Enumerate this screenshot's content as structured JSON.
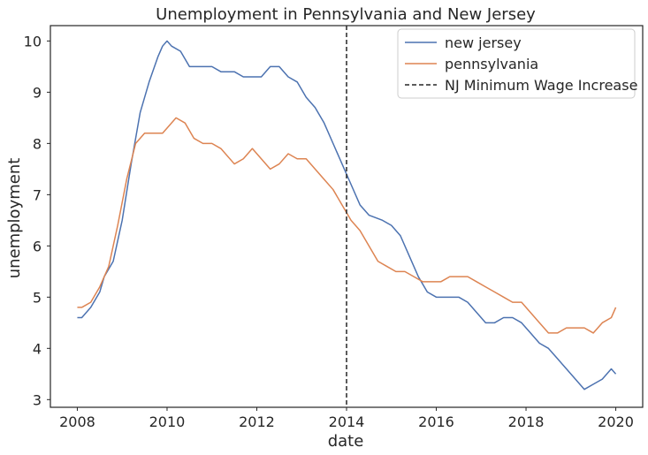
{
  "chart_data": {
    "type": "line",
    "title": "Unemployment in Pennsylvania and New Jersey",
    "xlabel": "date",
    "ylabel": "unemployment",
    "xlim": [
      2007.4,
      2020.6
    ],
    "ylim": [
      2.85,
      10.3
    ],
    "xticks": [
      2008,
      2010,
      2012,
      2014,
      2016,
      2018,
      2020
    ],
    "yticks": [
      3,
      4,
      5,
      6,
      7,
      8,
      9,
      10
    ],
    "grid": false,
    "legend_position": "top-right",
    "series": [
      {
        "name": "new jersey",
        "color": "#4c72b0",
        "points": [
          [
            2008.0,
            4.6
          ],
          [
            2008.1,
            4.6
          ],
          [
            2008.3,
            4.8
          ],
          [
            2008.5,
            5.1
          ],
          [
            2008.6,
            5.4
          ],
          [
            2008.8,
            5.7
          ],
          [
            2009.0,
            6.5
          ],
          [
            2009.2,
            7.6
          ],
          [
            2009.4,
            8.6
          ],
          [
            2009.6,
            9.2
          ],
          [
            2009.8,
            9.7
          ],
          [
            2009.9,
            9.9
          ],
          [
            2010.0,
            10.0
          ],
          [
            2010.1,
            9.9
          ],
          [
            2010.3,
            9.8
          ],
          [
            2010.5,
            9.5
          ],
          [
            2010.7,
            9.5
          ],
          [
            2011.0,
            9.5
          ],
          [
            2011.2,
            9.4
          ],
          [
            2011.5,
            9.4
          ],
          [
            2011.7,
            9.3
          ],
          [
            2011.9,
            9.3
          ],
          [
            2012.1,
            9.3
          ],
          [
            2012.3,
            9.5
          ],
          [
            2012.5,
            9.5
          ],
          [
            2012.7,
            9.3
          ],
          [
            2012.9,
            9.2
          ],
          [
            2013.1,
            8.9
          ],
          [
            2013.3,
            8.7
          ],
          [
            2013.5,
            8.4
          ],
          [
            2013.7,
            8.0
          ],
          [
            2013.9,
            7.6
          ],
          [
            2014.1,
            7.2
          ],
          [
            2014.3,
            6.8
          ],
          [
            2014.5,
            6.6
          ],
          [
            2014.8,
            6.5
          ],
          [
            2015.0,
            6.4
          ],
          [
            2015.2,
            6.2
          ],
          [
            2015.4,
            5.8
          ],
          [
            2015.6,
            5.4
          ],
          [
            2015.8,
            5.1
          ],
          [
            2016.0,
            5.0
          ],
          [
            2016.2,
            5.0
          ],
          [
            2016.5,
            5.0
          ],
          [
            2016.7,
            4.9
          ],
          [
            2016.9,
            4.7
          ],
          [
            2017.1,
            4.5
          ],
          [
            2017.3,
            4.5
          ],
          [
            2017.5,
            4.6
          ],
          [
            2017.7,
            4.6
          ],
          [
            2017.9,
            4.5
          ],
          [
            2018.1,
            4.3
          ],
          [
            2018.3,
            4.1
          ],
          [
            2018.5,
            4.0
          ],
          [
            2018.7,
            3.8
          ],
          [
            2018.9,
            3.6
          ],
          [
            2019.1,
            3.4
          ],
          [
            2019.3,
            3.2
          ],
          [
            2019.5,
            3.3
          ],
          [
            2019.7,
            3.4
          ],
          [
            2019.9,
            3.6
          ],
          [
            2020.0,
            3.5
          ]
        ]
      },
      {
        "name": "pennsylvania",
        "color": "#dd8452",
        "points": [
          [
            2008.0,
            4.8
          ],
          [
            2008.1,
            4.8
          ],
          [
            2008.3,
            4.9
          ],
          [
            2008.5,
            5.2
          ],
          [
            2008.7,
            5.6
          ],
          [
            2008.9,
            6.4
          ],
          [
            2009.1,
            7.3
          ],
          [
            2009.3,
            8.0
          ],
          [
            2009.5,
            8.2
          ],
          [
            2009.7,
            8.2
          ],
          [
            2009.9,
            8.2
          ],
          [
            2010.0,
            8.3
          ],
          [
            2010.2,
            8.5
          ],
          [
            2010.4,
            8.4
          ],
          [
            2010.6,
            8.1
          ],
          [
            2010.8,
            8.0
          ],
          [
            2011.0,
            8.0
          ],
          [
            2011.2,
            7.9
          ],
          [
            2011.5,
            7.6
          ],
          [
            2011.7,
            7.7
          ],
          [
            2011.9,
            7.9
          ],
          [
            2012.1,
            7.7
          ],
          [
            2012.3,
            7.5
          ],
          [
            2012.5,
            7.6
          ],
          [
            2012.7,
            7.8
          ],
          [
            2012.9,
            7.7
          ],
          [
            2013.1,
            7.7
          ],
          [
            2013.3,
            7.5
          ],
          [
            2013.5,
            7.3
          ],
          [
            2013.7,
            7.1
          ],
          [
            2013.9,
            6.8
          ],
          [
            2014.1,
            6.5
          ],
          [
            2014.3,
            6.3
          ],
          [
            2014.5,
            6.0
          ],
          [
            2014.7,
            5.7
          ],
          [
            2014.9,
            5.6
          ],
          [
            2015.1,
            5.5
          ],
          [
            2015.3,
            5.5
          ],
          [
            2015.5,
            5.4
          ],
          [
            2015.7,
            5.3
          ],
          [
            2015.9,
            5.3
          ],
          [
            2016.1,
            5.3
          ],
          [
            2016.3,
            5.4
          ],
          [
            2016.5,
            5.4
          ],
          [
            2016.7,
            5.4
          ],
          [
            2016.9,
            5.3
          ],
          [
            2017.1,
            5.2
          ],
          [
            2017.3,
            5.1
          ],
          [
            2017.5,
            5.0
          ],
          [
            2017.7,
            4.9
          ],
          [
            2017.9,
            4.9
          ],
          [
            2018.1,
            4.7
          ],
          [
            2018.3,
            4.5
          ],
          [
            2018.5,
            4.3
          ],
          [
            2018.7,
            4.3
          ],
          [
            2018.9,
            4.4
          ],
          [
            2019.1,
            4.4
          ],
          [
            2019.3,
            4.4
          ],
          [
            2019.5,
            4.3
          ],
          [
            2019.7,
            4.5
          ],
          [
            2019.9,
            4.6
          ],
          [
            2020.0,
            4.8
          ]
        ]
      }
    ],
    "vlines": [
      {
        "name": "NJ Minimum Wage Increase",
        "x": 2014.0,
        "color": "#262626",
        "style": "dashed"
      }
    ]
  }
}
